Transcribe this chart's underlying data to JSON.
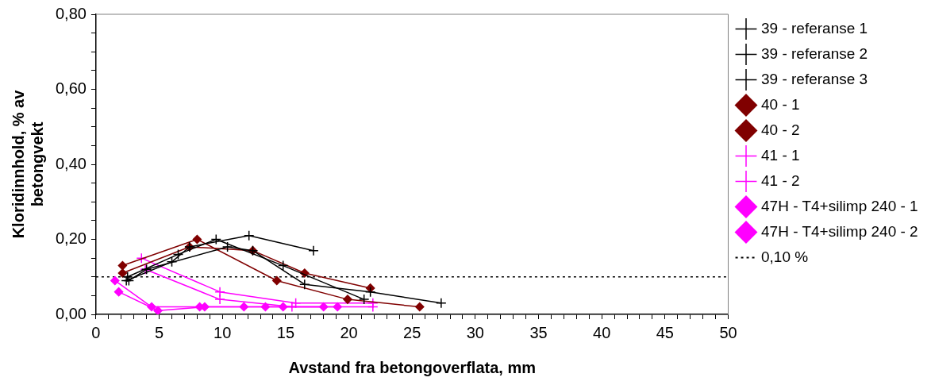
{
  "chart_data": {
    "type": "line",
    "xlabel": "Avstand fra betongoverflata, mm",
    "ylabel": "Kloridinnhold, % av\nbetongvekt",
    "xlim": [
      0,
      50
    ],
    "xticks": [
      0,
      {
        "value": 1,
        "label": null
      },
      {
        "value": 2,
        "label": null
      },
      {
        "value": 3,
        "label": null
      },
      {
        "value": 4,
        "label": null
      },
      5,
      {
        "value": 6,
        "label": null
      },
      {
        "value": 7,
        "label": null
      },
      {
        "value": 8,
        "label": null
      },
      {
        "value": 9,
        "label": null
      },
      10,
      {
        "value": 11,
        "label": null
      },
      {
        "value": 12,
        "label": null
      },
      {
        "value": 13,
        "label": null
      },
      {
        "value": 14,
        "label": null
      },
      15,
      {
        "value": 16,
        "label": null
      },
      {
        "value": 17,
        "label": null
      },
      {
        "value": 18,
        "label": null
      },
      {
        "value": 19,
        "label": null
      },
      20,
      {
        "value": 21,
        "label": null
      },
      {
        "value": 22,
        "label": null
      },
      {
        "value": 23,
        "label": null
      },
      {
        "value": 24,
        "label": null
      },
      25,
      {
        "value": 26,
        "label": null
      },
      {
        "value": 27,
        "label": null
      },
      {
        "value": 28,
        "label": null
      },
      {
        "value": 29,
        "label": null
      },
      30,
      {
        "value": 31,
        "label": null
      },
      {
        "value": 32,
        "label": null
      },
      {
        "value": 33,
        "label": null
      },
      {
        "value": 34,
        "label": null
      },
      35,
      {
        "value": 36,
        "label": null
      },
      {
        "value": 37,
        "label": null
      },
      {
        "value": 38,
        "label": null
      },
      {
        "value": 39,
        "label": null
      },
      40,
      {
        "value": 41,
        "label": null
      },
      {
        "value": 42,
        "label": null
      },
      {
        "value": 43,
        "label": null
      },
      {
        "value": 44,
        "label": null
      },
      45,
      {
        "value": 46,
        "label": null
      },
      {
        "value": 47,
        "label": null
      },
      {
        "value": 48,
        "label": null
      },
      {
        "value": 49,
        "label": null
      },
      50
    ],
    "ylim": [
      0,
      0.8
    ],
    "yticks": [
      {
        "value": 0,
        "label": "0,00"
      },
      {
        "value": 0.05,
        "label": null
      },
      {
        "value": 0.1,
        "label": null
      },
      {
        "value": 0.15,
        "label": null
      },
      {
        "value": 0.2,
        "label": "0,20"
      },
      {
        "value": 0.25,
        "label": null
      },
      {
        "value": 0.3,
        "label": null
      },
      {
        "value": 0.35,
        "label": null
      },
      {
        "value": 0.4,
        "label": "0,40"
      },
      {
        "value": 0.45,
        "label": null
      },
      {
        "value": 0.5,
        "label": null
      },
      {
        "value": 0.55,
        "label": null
      },
      {
        "value": 0.6,
        "label": "0,60"
      },
      {
        "value": 0.65,
        "label": null
      },
      {
        "value": 0.7,
        "label": null
      },
      {
        "value": 0.75,
        "label": null
      },
      {
        "value": 0.8,
        "label": "0,80"
      }
    ],
    "grid": false,
    "legend": "right",
    "line_style": "solid",
    "series": [
      {
        "name": "39 - referanse 1",
        "color": "#000000",
        "marker": "cross",
        "x": [
          2.4,
          6.0,
          7.4,
          12.1,
          17.2
        ],
        "values": [
          0.09,
          0.14,
          0.18,
          0.21,
          0.17
        ]
      },
      {
        "name": "39 - referanse 2",
        "color": "#000000",
        "marker": "cross",
        "x": [
          2.5,
          6.5,
          9.5,
          14.8,
          21.2
        ],
        "values": [
          0.1,
          0.16,
          0.2,
          0.13,
          0.04
        ]
      },
      {
        "name": "39 - referanse 3",
        "color": "#000000",
        "marker": "cross",
        "x": [
          2.6,
          4.0,
          10.4,
          12.4,
          16.5,
          21.7,
          27.3
        ],
        "values": [
          0.09,
          0.12,
          0.18,
          0.17,
          0.08,
          0.06,
          0.03
        ]
      },
      {
        "name": "40 - 1",
        "color": "#800000",
        "marker": "diamond",
        "x": [
          2.1,
          8.0,
          14.3,
          19.9,
          25.6
        ],
        "values": [
          0.13,
          0.2,
          0.09,
          0.04,
          0.02
        ]
      },
      {
        "name": "40 - 2",
        "color": "#800000",
        "marker": "diamond",
        "x": [
          2.1,
          7.4,
          12.4,
          16.5,
          21.7
        ],
        "values": [
          0.11,
          0.18,
          0.17,
          0.11,
          0.07
        ]
      },
      {
        "name": "41 - 1",
        "color": "#ff00ff",
        "marker": "cross",
        "x": [
          3.6,
          9.8,
          15.8,
          21.9
        ],
        "values": [
          0.15,
          0.06,
          0.03,
          0.03
        ]
      },
      {
        "name": "41 - 2",
        "color": "#ff00ff",
        "marker": "cross",
        "x": [
          3.9,
          9.8,
          15.5,
          21.9
        ],
        "values": [
          0.12,
          0.04,
          0.02,
          0.02
        ]
      },
      {
        "name": "47H - T4+silimp 240 - 1",
        "color": "#ff00ff",
        "marker": "diamond",
        "x": [
          1.5,
          4.4,
          8.2,
          11.7,
          14.8,
          18.0
        ],
        "values": [
          0.09,
          0.02,
          0.02,
          0.02,
          0.02,
          0.02
        ]
      },
      {
        "name": "47H - T4+silimp 240 - 2",
        "color": "#ff00ff",
        "marker": "diamond",
        "x": [
          1.8,
          4.9,
          8.6,
          13.4,
          19.1
        ],
        "values": [
          0.06,
          0.01,
          0.02,
          0.02,
          0.02
        ]
      }
    ],
    "ref_lines": [
      {
        "axis": "y",
        "value": 0.1,
        "label": "0,10 %",
        "color": "#000000",
        "line_style": "dotted"
      }
    ]
  }
}
